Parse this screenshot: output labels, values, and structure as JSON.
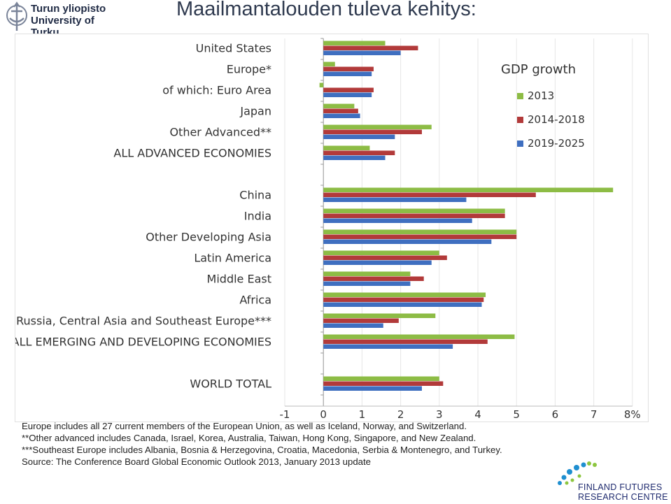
{
  "header": {
    "university_line1": "Turun yliopisto",
    "university_line2": "University of Turku",
    "title": "Maailmantalouden tuleva kehitys:"
  },
  "chart_data": {
    "type": "bar",
    "orientation": "horizontal",
    "title": "GDP growth",
    "xlabel": "",
    "ylabel": "",
    "x_unit": "%",
    "xlim": [
      -1,
      8
    ],
    "xticks": [
      "-1",
      "0",
      "1",
      "2",
      "3",
      "4",
      "5",
      "6",
      "7",
      "8%"
    ],
    "legend_position": "top-right",
    "colors": {
      "2013": "#8dbc45",
      "2014-2018": "#b23a3a",
      "2019-2025": "#3f6fc0"
    },
    "categories": [
      "United States",
      "Europe*",
      "of which: Euro Area",
      "Japan",
      "Other Advanced**",
      "ALL ADVANCED ECONOMIES",
      "China",
      "India",
      "Other Developing Asia",
      "Latin America",
      "Middle East",
      "Africa",
      "Russia, Central Asia and Southeast Europe***",
      "ALL EMERGING AND DEVELOPING ECONOMIES",
      "WORLD TOTAL"
    ],
    "series": [
      {
        "name": "2013",
        "values": [
          1.6,
          0.3,
          -0.1,
          0.8,
          2.8,
          1.2,
          7.5,
          4.7,
          5.0,
          3.0,
          2.25,
          4.2,
          2.9,
          4.95,
          3.0
        ]
      },
      {
        "name": "2014-2018",
        "values": [
          2.45,
          1.3,
          1.3,
          0.9,
          2.55,
          1.85,
          5.5,
          4.7,
          5.0,
          3.2,
          2.6,
          4.15,
          1.95,
          4.25,
          3.1
        ]
      },
      {
        "name": "2019-2025",
        "values": [
          2.0,
          1.25,
          1.25,
          0.95,
          1.85,
          1.6,
          3.7,
          3.85,
          4.35,
          2.8,
          2.25,
          4.1,
          1.55,
          3.35,
          2.55
        ]
      }
    ]
  },
  "notes": [
    "Europe includes all 27 current members of the European Union, as well as Iceland, Norway, and Switzerland.",
    "**Other advanced includes Canada, Israel, Korea, Australia, Taiwan, Hong Kong, Singapore, and New Zealand.",
    "***Southeast Europe includes Albania, Bosnia & Herzegovina, Croatia, Macedonia, Serbia & Montenegro, and Turkey.",
    "Source: The Conference Board Global Economic Outlook 2013, January 2013 update"
  ],
  "footer_logo": {
    "line1": "FINLAND FUTURES",
    "line2": "RESEARCH CENTRE"
  }
}
